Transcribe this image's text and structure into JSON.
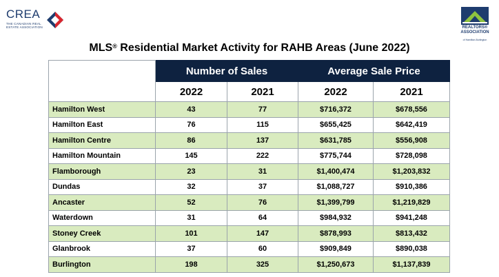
{
  "logos": {
    "crea_word": "CREA",
    "crea_sub_line1": "THE CANADIAN REAL",
    "crea_sub_line2": "ESTATE ASSOCIATION",
    "rahb_word_line1": "REALTORS®",
    "rahb_word_line2": "ASSOCIATION",
    "rahb_small": "of Hamilton-Burlington"
  },
  "title": {
    "prefix": "MLS",
    "reg": "®",
    "rest": " Residential Market Activity for RAHB Areas (June 2022)"
  },
  "table": {
    "group_headers": [
      "Number of Sales",
      "Average Sale Price"
    ],
    "year_headers": [
      "2022",
      "2021",
      "2022",
      "2021"
    ],
    "rows": [
      {
        "area": "Hamilton West",
        "sales_2022": "43",
        "sales_2021": "77",
        "price_2022": "$716,372",
        "price_2021": "$678,556"
      },
      {
        "area": "Hamilton East",
        "sales_2022": "76",
        "sales_2021": "115",
        "price_2022": "$655,425",
        "price_2021": "$642,419"
      },
      {
        "area": "Hamilton Centre",
        "sales_2022": "86",
        "sales_2021": "137",
        "price_2022": "$631,785",
        "price_2021": "$556,908"
      },
      {
        "area": "Hamilton Mountain",
        "sales_2022": "145",
        "sales_2021": "222",
        "price_2022": "$775,744",
        "price_2021": "$728,098"
      },
      {
        "area": "Flamborough",
        "sales_2022": "23",
        "sales_2021": "31",
        "price_2022": "$1,400,474",
        "price_2021": "$1,203,832"
      },
      {
        "area": "Dundas",
        "sales_2022": "32",
        "sales_2021": "37",
        "price_2022": "$1,088,727",
        "price_2021": "$910,386"
      },
      {
        "area": "Ancaster",
        "sales_2022": "52",
        "sales_2021": "76",
        "price_2022": "$1,399,799",
        "price_2021": "$1,219,829"
      },
      {
        "area": "Waterdown",
        "sales_2022": "31",
        "sales_2021": "64",
        "price_2022": "$984,932",
        "price_2021": "$941,248"
      },
      {
        "area": "Stoney Creek",
        "sales_2022": "101",
        "sales_2021": "147",
        "price_2022": "$878,993",
        "price_2021": "$813,432"
      },
      {
        "area": "Glanbrook",
        "sales_2022": "37",
        "sales_2021": "60",
        "price_2022": "$909,849",
        "price_2021": "$890,038"
      },
      {
        "area": "Burlington",
        "sales_2022": "198",
        "sales_2021": "325",
        "price_2022": "$1,250,673",
        "price_2021": "$1,137,839"
      }
    ]
  },
  "colors": {
    "header_navy": "#0e2240",
    "row_green": "#d9ebbf",
    "crea_red": "#d9262e",
    "crea_blue": "#1e3c6e"
  }
}
